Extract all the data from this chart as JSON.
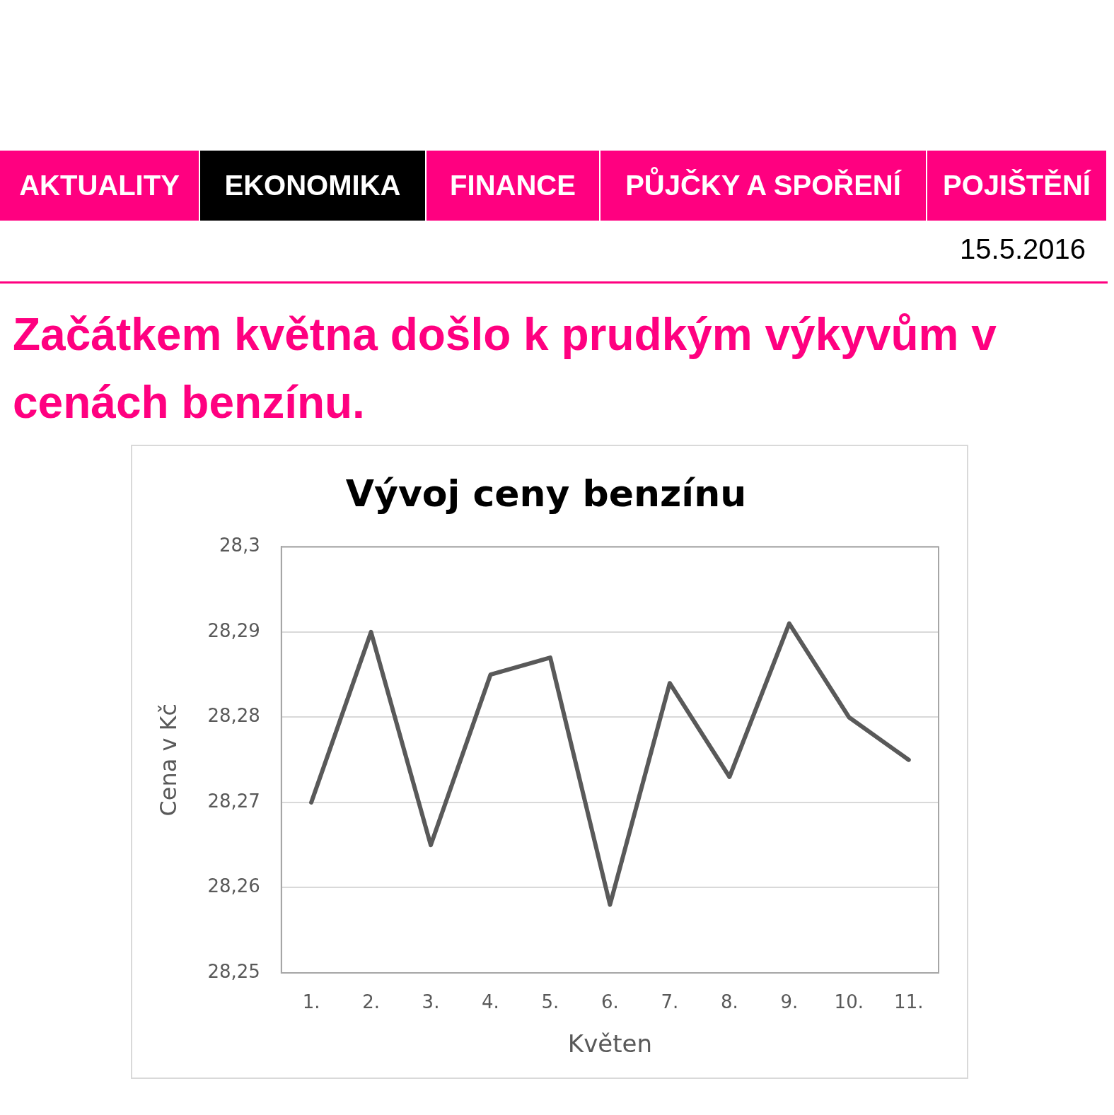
{
  "chart_data": {
    "type": "line",
    "title": "Vývoj ceny benzínu",
    "subtitle": "Začátkem května došlo k prudkým výkyvům v cenách benzínu.",
    "xlabel": "Květen",
    "ylabel": "Cena v Kč",
    "annotations": [
      "AKTUALITY",
      "EKONOMIKA",
      "FINANCE",
      "PŮJČKY A SPOŘENÍ",
      "POJIŠTĚNÍ",
      "15.5.2016"
    ],
    "categories": [
      "1.",
      "2.",
      "3.",
      "4.",
      "5.",
      "6.",
      "7.",
      "8.",
      "9.",
      "10.",
      "11."
    ],
    "series": [
      {
        "color": "#595959",
        "values": [
          28.27,
          28.29,
          28.265,
          28.285,
          28.287,
          28.258,
          28.284,
          28.273,
          28.291,
          28.28,
          28.275
        ]
      }
    ],
    "ylim": [
      28.25,
      28.3
    ],
    "yticks": [
      {
        "value": 28.25,
        "label": "28,25"
      },
      {
        "value": 28.26,
        "label": "28,26"
      },
      {
        "value": 28.27,
        "label": "28,27"
      },
      {
        "value": 28.28,
        "label": "28,28"
      },
      {
        "value": 28.29,
        "label": "28,29"
      },
      {
        "value": 28.3,
        "label": "28,3"
      }
    ],
    "grid": "y",
    "legend": false,
    "marker": "none",
    "line_style": "solid"
  }
}
